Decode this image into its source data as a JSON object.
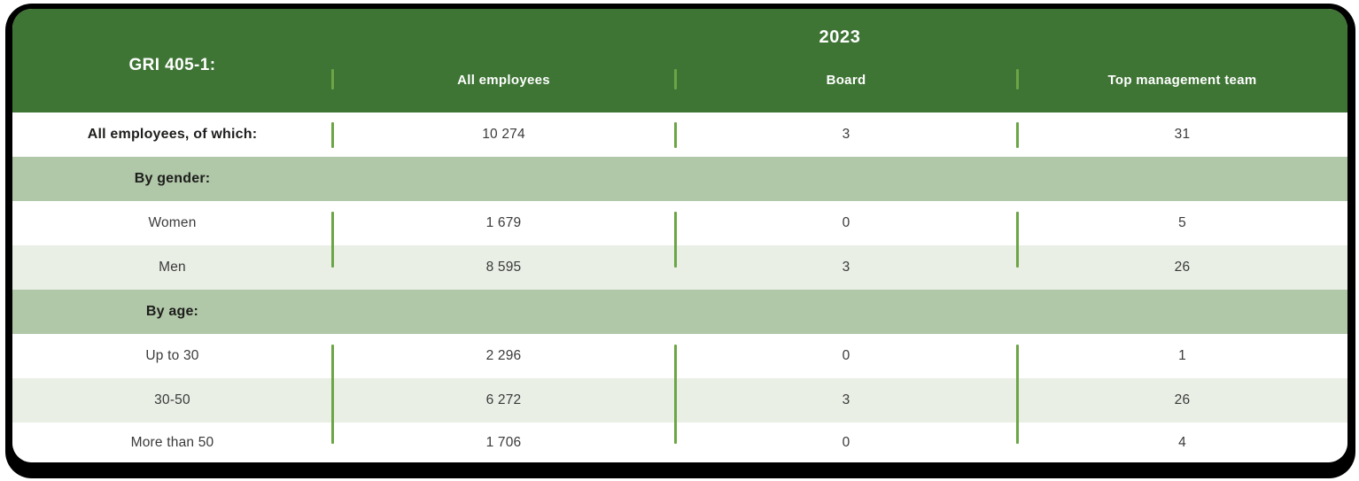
{
  "theme": {
    "header_green": "#3e7434",
    "band_sage": "#b0c7a8",
    "row_light": "#e9efe5",
    "divider_green": "#6ca546",
    "backdrop_black": "#000000"
  },
  "table": {
    "gri_label": "GRI 405-1:",
    "year": "2023",
    "columns": [
      "All employees",
      "Board",
      "Top management team"
    ],
    "rows": [
      {
        "label": "All employees, of which:",
        "values": [
          "10 274",
          "3",
          "31"
        ]
      },
      {
        "label": "By gender:"
      },
      {
        "label": "Women",
        "values": [
          "1 679",
          "0",
          "5"
        ]
      },
      {
        "label": "Men",
        "values": [
          "8 595",
          "3",
          "26"
        ]
      },
      {
        "label": "By age:"
      },
      {
        "label": "Up to 30",
        "values": [
          "2 296",
          "0",
          "1"
        ]
      },
      {
        "label": "30-50",
        "values": [
          "6 272",
          "3",
          "26"
        ]
      },
      {
        "label": "More than 50",
        "values": [
          "1 706",
          "0",
          "4"
        ]
      }
    ]
  },
  "chart_data": {
    "type": "table",
    "title": "GRI 405-1: 2023",
    "columns": [
      "",
      "All employees",
      "Board",
      "Top management team"
    ],
    "rows": [
      [
        "All employees, of which:",
        10274,
        3,
        31
      ],
      [
        "By gender:",
        null,
        null,
        null
      ],
      [
        "Women",
        1679,
        0,
        5
      ],
      [
        "Men",
        8595,
        3,
        26
      ],
      [
        "By age:",
        null,
        null,
        null
      ],
      [
        "Up to 30",
        2296,
        0,
        1
      ],
      [
        "30-50",
        6272,
        3,
        26
      ],
      [
        "More than 50",
        1706,
        0,
        4
      ]
    ]
  }
}
